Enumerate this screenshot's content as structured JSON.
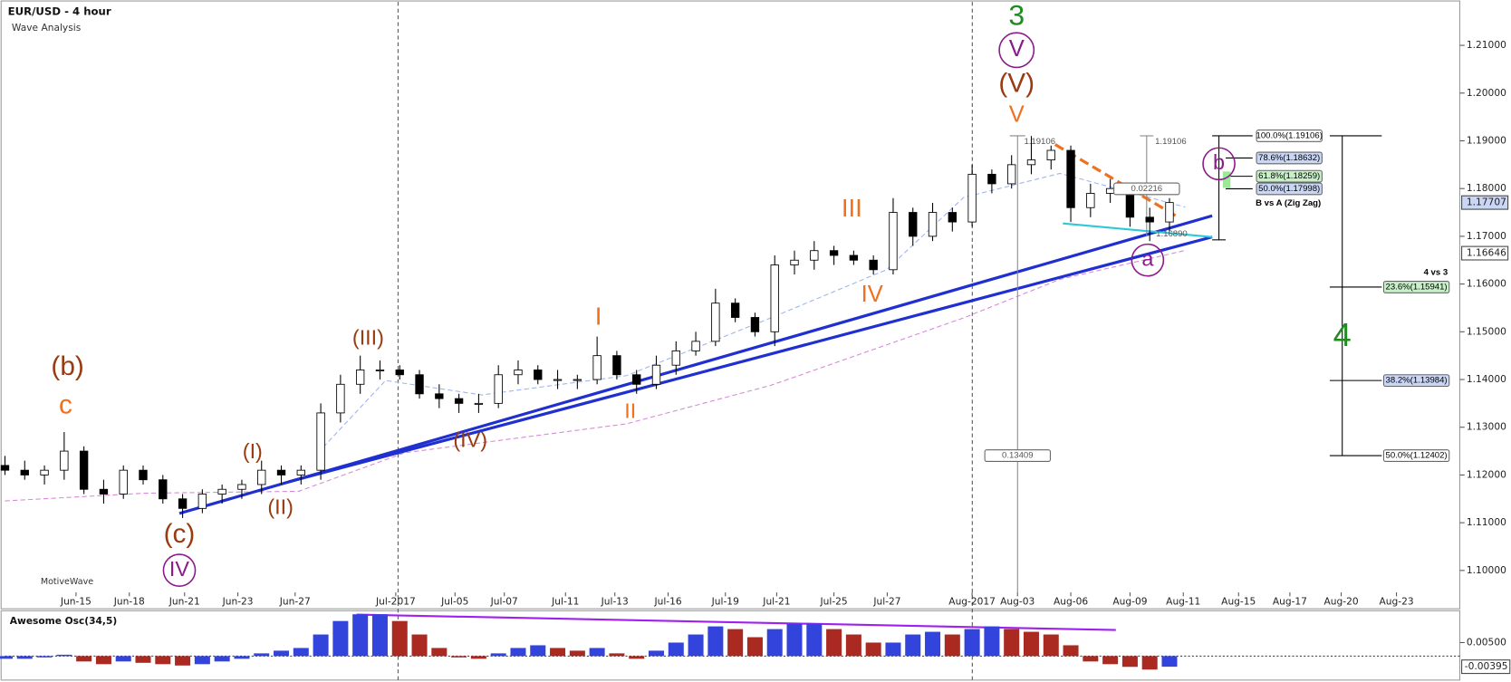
{
  "chart_data": [
    {
      "type": "candlestick",
      "title": "EUR/USD - 4 hour",
      "subtitle": "Wave Analysis",
      "footer": "MotiveWave",
      "x": [
        0,
        1,
        2,
        3,
        4,
        5,
        6,
        7,
        8,
        9,
        10,
        11,
        12,
        13,
        14,
        15,
        16,
        17,
        18,
        19,
        20,
        21,
        22,
        23,
        24,
        25,
        26,
        27,
        28,
        29,
        30,
        31,
        32,
        33,
        34,
        35,
        36,
        37,
        38,
        39,
        40,
        41,
        42,
        43,
        44,
        45,
        46,
        47,
        48,
        49,
        50,
        51,
        52,
        53,
        54,
        55,
        56,
        57,
        58,
        59
      ],
      "open": [
        1.122,
        1.121,
        1.12,
        1.121,
        1.125,
        1.117,
        1.116,
        1.121,
        1.119,
        1.115,
        1.113,
        1.116,
        1.117,
        1.118,
        1.121,
        1.12,
        1.121,
        1.133,
        1.139,
        1.142,
        1.142,
        1.141,
        1.137,
        1.136,
        1.135,
        1.135,
        1.141,
        1.142,
        1.14,
        1.14,
        1.14,
        1.145,
        1.141,
        1.139,
        1.143,
        1.146,
        1.148,
        1.156,
        1.153,
        1.15,
        1.164,
        1.165,
        1.167,
        1.166,
        1.165,
        1.163,
        1.175,
        1.17,
        1.175,
        1.173,
        1.183,
        1.181,
        1.185,
        1.186,
        1.188,
        1.176,
        1.179,
        1.18,
        1.174,
        1.173
      ],
      "high": [
        1.124,
        1.123,
        1.122,
        1.129,
        1.126,
        1.119,
        1.122,
        1.122,
        1.12,
        1.116,
        1.117,
        1.118,
        1.119,
        1.123,
        1.122,
        1.122,
        1.135,
        1.141,
        1.145,
        1.144,
        1.143,
        1.142,
        1.139,
        1.137,
        1.137,
        1.143,
        1.144,
        1.143,
        1.142,
        1.141,
        1.149,
        1.146,
        1.142,
        1.145,
        1.148,
        1.15,
        1.159,
        1.157,
        1.154,
        1.166,
        1.167,
        1.169,
        1.168,
        1.167,
        1.166,
        1.178,
        1.176,
        1.177,
        1.176,
        1.185,
        1.184,
        1.187,
        1.191,
        1.189,
        1.189,
        1.181,
        1.182,
        1.181,
        1.176,
        1.178
      ],
      "low": [
        1.12,
        1.119,
        1.118,
        1.119,
        1.116,
        1.114,
        1.115,
        1.118,
        1.114,
        1.111,
        1.112,
        1.114,
        1.115,
        1.116,
        1.118,
        1.118,
        1.119,
        1.131,
        1.137,
        1.14,
        1.14,
        1.136,
        1.134,
        1.133,
        1.133,
        1.134,
        1.139,
        1.139,
        1.138,
        1.138,
        1.139,
        1.14,
        1.137,
        1.138,
        1.141,
        1.145,
        1.147,
        1.152,
        1.149,
        1.147,
        1.162,
        1.163,
        1.164,
        1.164,
        1.162,
        1.162,
        1.168,
        1.169,
        1.171,
        1.172,
        1.179,
        1.18,
        1.183,
        1.184,
        1.173,
        1.174,
        1.177,
        1.172,
        1.169,
        1.171
      ],
      "close": [
        1.121,
        1.12,
        1.121,
        1.125,
        1.117,
        1.116,
        1.121,
        1.119,
        1.115,
        1.113,
        1.116,
        1.117,
        1.118,
        1.121,
        1.12,
        1.121,
        1.133,
        1.139,
        1.142,
        1.142,
        1.141,
        1.137,
        1.136,
        1.135,
        1.135,
        1.141,
        1.142,
        1.14,
        1.14,
        1.14,
        1.145,
        1.141,
        1.139,
        1.143,
        1.146,
        1.148,
        1.156,
        1.153,
        1.15,
        1.164,
        1.165,
        1.167,
        1.166,
        1.165,
        1.163,
        1.175,
        1.17,
        1.175,
        1.173,
        1.183,
        1.181,
        1.185,
        1.186,
        1.188,
        1.176,
        1.179,
        1.18,
        1.174,
        1.173,
        1.17707
      ],
      "up_color": "#ffffff",
      "down_color": "#000000",
      "xlim": [
        0,
        72
      ],
      "xticks": [
        {
          "value": 3.6,
          "label": "Jun-15"
        },
        {
          "value": 6.3,
          "label": "Jun-18"
        },
        {
          "value": 9.1,
          "label": "Jun-21"
        },
        {
          "value": 11.8,
          "label": "Jun-23"
        },
        {
          "value": 14.7,
          "label": "Jun-27"
        },
        {
          "value": 19.8,
          "label": "Jul-2017"
        },
        {
          "value": 22.8,
          "label": "Jul-05"
        },
        {
          "value": 25.3,
          "label": "Jul-07"
        },
        {
          "value": 28.4,
          "label": "Jul-11"
        },
        {
          "value": 30.9,
          "label": "Jul-13"
        },
        {
          "value": 33.6,
          "label": "Jul-16"
        },
        {
          "value": 36.5,
          "label": "Jul-19"
        },
        {
          "value": 39.1,
          "label": "Jul-21"
        },
        {
          "value": 42.0,
          "label": "Jul-25"
        },
        {
          "value": 44.7,
          "label": "Jul-27"
        },
        {
          "value": 49.0,
          "label": "Aug-2017"
        },
        {
          "value": 51.3,
          "label": "Aug-03"
        },
        {
          "value": 54.0,
          "label": "Aug-06"
        },
        {
          "value": 57.0,
          "label": "Aug-09"
        },
        {
          "value": 59.7,
          "label": "Aug-11"
        },
        {
          "value": 62.5,
          "label": "Aug-15"
        },
        {
          "value": 65.1,
          "label": "Aug-17"
        },
        {
          "value": 67.7,
          "label": "Aug-20"
        },
        {
          "value": 70.5,
          "label": "Aug-23"
        }
      ],
      "ylim": [
        1.0954,
        1.2195
      ],
      "yticks": [
        {
          "value": 1.1,
          "label": "1.10000"
        },
        {
          "value": 1.11,
          "label": "1.11000"
        },
        {
          "value": 1.12,
          "label": "1.12000"
        },
        {
          "value": 1.13,
          "label": "1.13000"
        },
        {
          "value": 1.14,
          "label": "1.14000"
        },
        {
          "value": 1.15,
          "label": "1.15000"
        },
        {
          "value": 1.16,
          "label": "1.16000"
        },
        {
          "value": 1.17,
          "label": "1.17000"
        },
        {
          "value": 1.18,
          "label": "1.18000"
        },
        {
          "value": 1.19,
          "label": "1.19000"
        },
        {
          "value": 1.2,
          "label": "1.20000"
        },
        {
          "value": 1.21,
          "label": "1.21000"
        }
      ],
      "price_tags": [
        {
          "value": 1.17707,
          "label": "1.17707"
        },
        {
          "value": 1.16646,
          "label": "1.16646"
        }
      ],
      "annotations": [
        "(b)",
        "c",
        "(c)",
        "IV",
        "(I)",
        "(II)",
        "(III)",
        "(IV)",
        "I",
        "II",
        "III",
        "IV",
        "V",
        "(V)",
        "V",
        "3",
        "a",
        "b",
        "4",
        "B vs A (Zig Zag)",
        "4 vs 3",
        "100.0%(1.19106)",
        "78.6%(1.18632)",
        "61.8%(1.18259)",
        "50.0%(1.17998)",
        "23.6%(1.15941)",
        "38.2%(1.13984)",
        "50.0%(1.12402)",
        "1.19106",
        "0.13409",
        "1.19106",
        "0.02216",
        "1.16890"
      ]
    },
    {
      "type": "bar",
      "title": "Awesome Osc(34,5)",
      "values": [
        -0.001,
        -0.001,
        -0.0005,
        0.0005,
        -0.002,
        -0.003,
        -0.002,
        -0.0025,
        -0.003,
        -0.0035,
        -0.003,
        -0.002,
        -0.001,
        0.001,
        0.002,
        0.003,
        0.008,
        0.013,
        0.0155,
        0.0155,
        0.013,
        0.008,
        0.003,
        -0.0005,
        -0.001,
        0.001,
        0.003,
        0.004,
        0.003,
        0.002,
        0.003,
        0.001,
        -0.001,
        0.002,
        0.005,
        0.008,
        0.011,
        0.01,
        0.007,
        0.01,
        0.012,
        0.012,
        0.01,
        0.008,
        0.005,
        0.005,
        0.008,
        0.009,
        0.008,
        0.01,
        0.011,
        0.01,
        0.009,
        0.008,
        0.004,
        -0.002,
        -0.003,
        -0.004,
        -0.005,
        -0.00395
      ],
      "up_color": "#3344dd",
      "down_color": "#aa2a22",
      "ylim": [
        -0.0089,
        0.0161
      ],
      "yticks": [
        {
          "value": 0.005,
          "label": "0.00500"
        }
      ],
      "price_tags": [
        {
          "value": -0.00395,
          "label": "-0.00395"
        }
      ]
    }
  ]
}
